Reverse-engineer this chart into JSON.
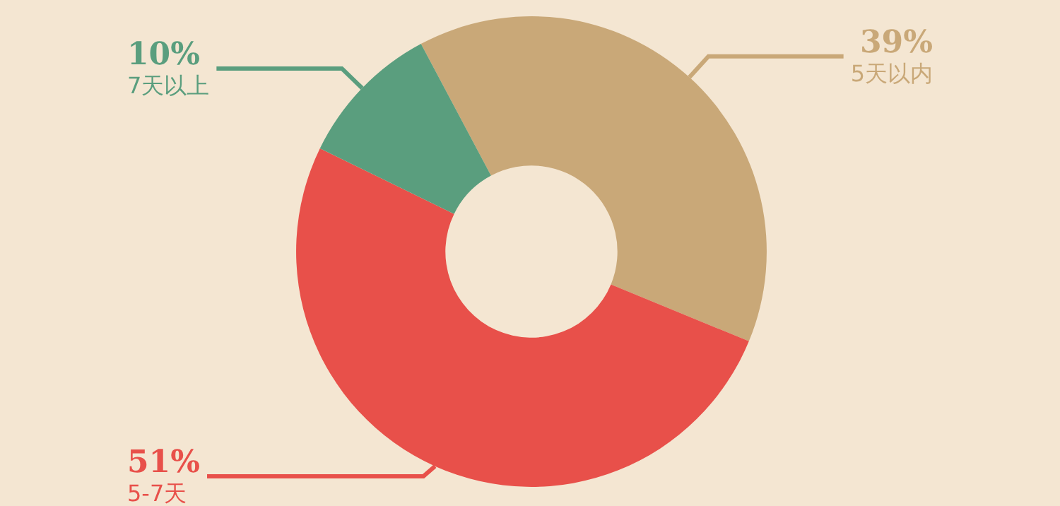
{
  "chart_data": {
    "type": "donut",
    "categories": [
      "5天以内",
      "5-7天",
      "7天以上"
    ],
    "values": [
      39,
      51,
      10
    ],
    "value_labels": [
      "39%",
      "51%",
      "10%"
    ],
    "colors": [
      "#c9a878",
      "#e8504a",
      "#5a9e7e"
    ],
    "legend": false
  }
}
